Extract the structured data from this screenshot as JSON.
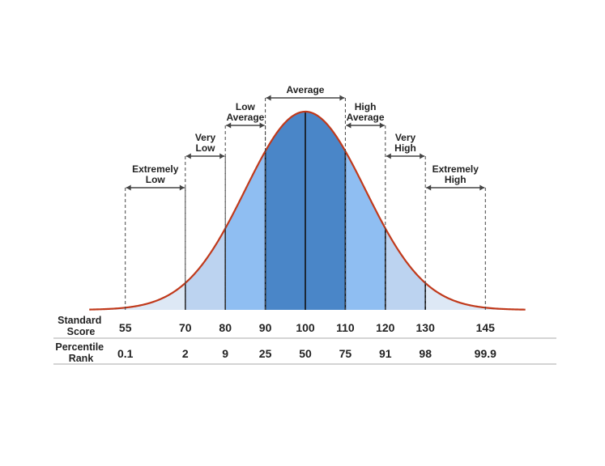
{
  "chart_data": {
    "type": "area",
    "distribution": "normal",
    "mean": 100,
    "sd": 15,
    "xlim": [
      46,
      155
    ],
    "row_labels": {
      "score_line1": "Standard",
      "score_line2": "Score",
      "rank_line1": "Percentile",
      "rank_line2": "Rank"
    },
    "ticks": [
      {
        "score": "55",
        "rank": "0.1",
        "value": 55
      },
      {
        "score": "70",
        "rank": "2",
        "value": 70
      },
      {
        "score": "80",
        "rank": "9",
        "value": 80
      },
      {
        "score": "90",
        "rank": "25",
        "value": 90
      },
      {
        "score": "100",
        "rank": "50",
        "value": 100
      },
      {
        "score": "110",
        "rank": "75",
        "value": 110
      },
      {
        "score": "120",
        "rank": "91",
        "value": 120
      },
      {
        "score": "130",
        "rank": "98",
        "value": 130
      },
      {
        "score": "145",
        "rank": "99.9",
        "value": 145
      }
    ],
    "ranges": [
      {
        "line1": "Extremely",
        "line2": "Low",
        "from": 55,
        "to": 70,
        "level": 0
      },
      {
        "line1": "Very",
        "line2": "Low",
        "from": 70,
        "to": 80,
        "level": 1
      },
      {
        "line1": "Low",
        "line2": "Average",
        "from": 80,
        "to": 90,
        "level": 2
      },
      {
        "line1": "Average",
        "line2": "",
        "from": 90,
        "to": 110,
        "level": 3
      },
      {
        "line1": "High",
        "line2": "Average",
        "from": 110,
        "to": 120,
        "level": 2
      },
      {
        "line1": "Very",
        "line2": "High",
        "from": 120,
        "to": 130,
        "level": 1
      },
      {
        "line1": "Extremely",
        "line2": "High",
        "from": 130,
        "to": 145,
        "level": 0
      }
    ],
    "bands": [
      {
        "from": 46,
        "to": 70,
        "color": "#dde8f5"
      },
      {
        "from": 70,
        "to": 80,
        "color": "#bcd3f0"
      },
      {
        "from": 80,
        "to": 90,
        "color": "#8fbef2"
      },
      {
        "from": 90,
        "to": 110,
        "color": "#4a86c8"
      },
      {
        "from": 110,
        "to": 120,
        "color": "#8fbef2"
      },
      {
        "from": 120,
        "to": 130,
        "color": "#bcd3f0"
      },
      {
        "from": 130,
        "to": 155,
        "color": "#dde8f5"
      }
    ],
    "colors": {
      "curve": "#c0391b",
      "divider": "#111111",
      "guide": "#444444",
      "rule": "#aaaaaa"
    }
  }
}
